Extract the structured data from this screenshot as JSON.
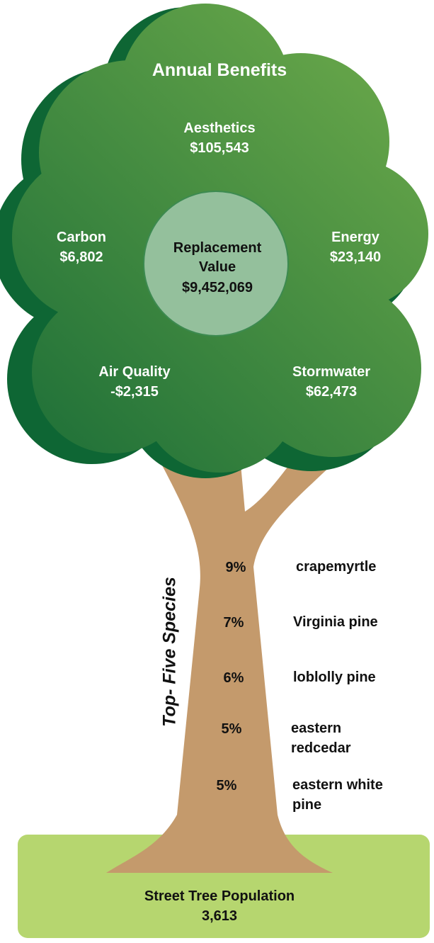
{
  "title": "Annual Benefits",
  "benefits": [
    {
      "label": "Aesthetics",
      "value": "$105,543"
    },
    {
      "label": "Carbon",
      "value": "$6,802"
    },
    {
      "label": "Energy",
      "value": "$23,140"
    },
    {
      "label": "Air Quality",
      "value": "-$2,315"
    },
    {
      "label": "Stormwater",
      "value": "$62,473"
    }
  ],
  "replacement": {
    "label": "Replacement Value",
    "value": "$9,452,069"
  },
  "species_heading": "Top- Five Species",
  "species": [
    {
      "share": "9%",
      "name": "crapemyrtle"
    },
    {
      "share": "7%",
      "name": "Virginia pine"
    },
    {
      "share": "6%",
      "name": "loblolly pine"
    },
    {
      "share": "5%",
      "name": "eastern redcedar"
    },
    {
      "share": "5%",
      "name": "eastern white pine"
    }
  ],
  "population": {
    "label": "Street Tree Population",
    "value": "3,613"
  }
}
